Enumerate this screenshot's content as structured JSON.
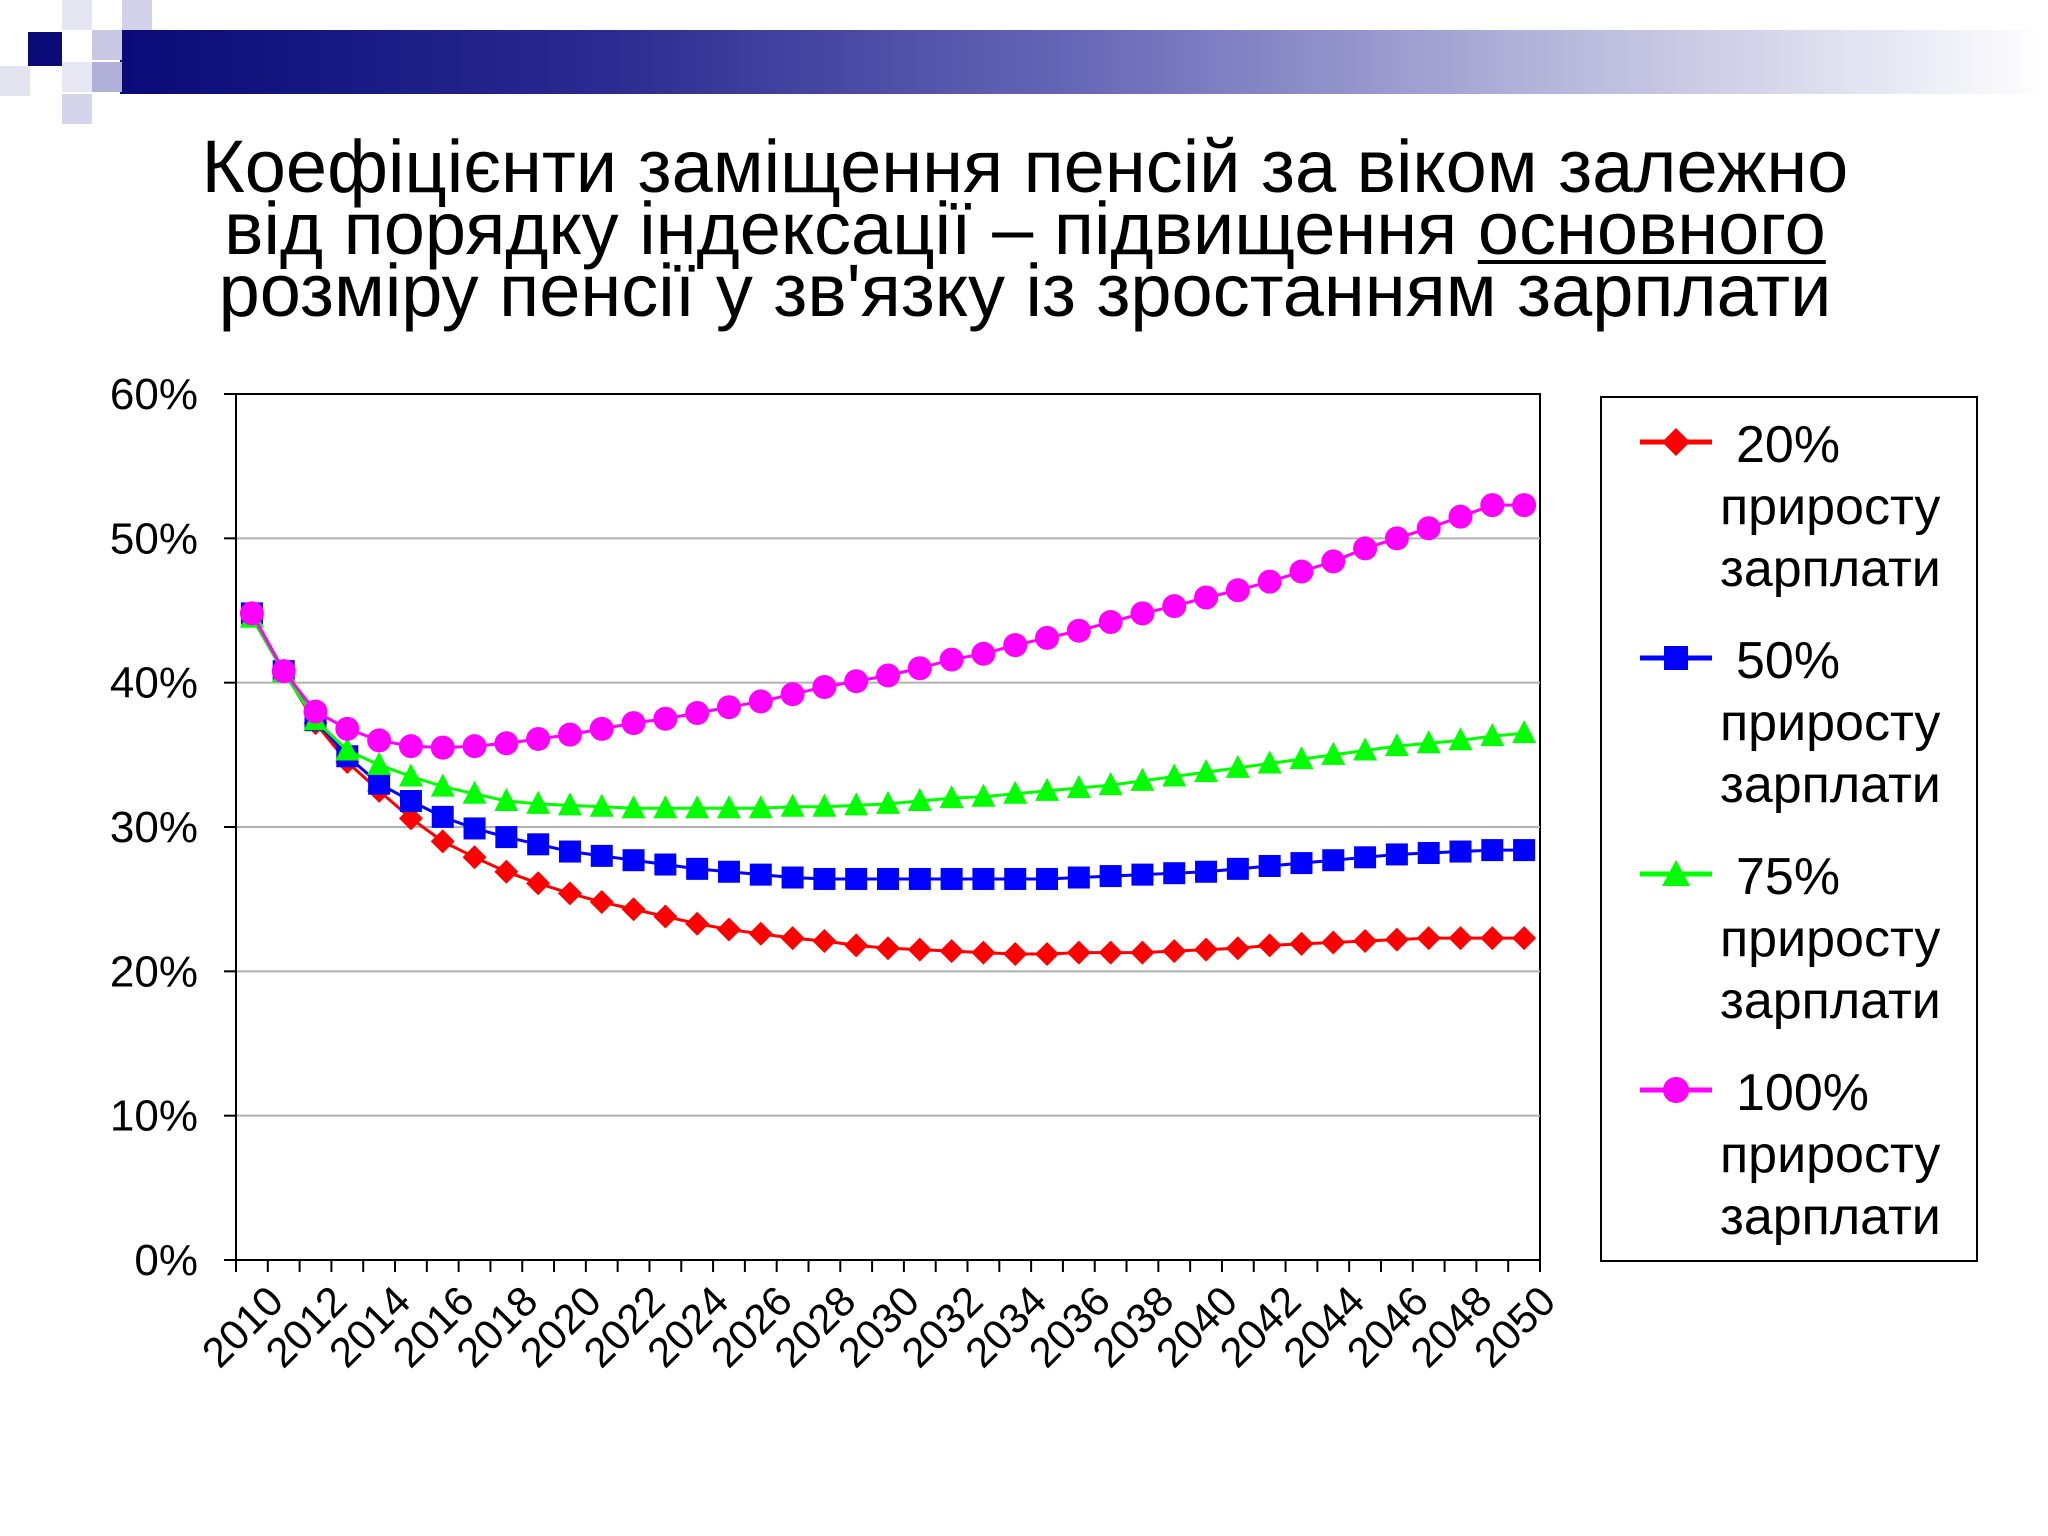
{
  "slide": {
    "title_line1": "Коефіцієнти заміщення пенсій за віком залежно",
    "title_line2_pre": "від порядку індексації – підвищення ",
    "title_line2_underlined": "основного",
    "title_line3": "розміру пенсії у зв'язку із зростанням зарплати",
    "colors": {
      "bar_dark": "#0a0a78",
      "bar_light": "#b8b8dc"
    }
  },
  "chart_data": {
    "type": "line",
    "title": "",
    "xlabel": "",
    "ylabel": "",
    "ylim": [
      0,
      60
    ],
    "yticks": [
      "0%",
      "10%",
      "20%",
      "30%",
      "40%",
      "50%",
      "60%"
    ],
    "x_tick_labels": [
      "2010",
      "2012",
      "2014",
      "2016",
      "2018",
      "2020",
      "2022",
      "2024",
      "2026",
      "2028",
      "2030",
      "2032",
      "2034",
      "2036",
      "2038",
      "2040",
      "2042",
      "2044",
      "2046",
      "2048",
      "2050"
    ],
    "x": [
      2010,
      2011,
      2012,
      2013,
      2014,
      2015,
      2016,
      2017,
      2018,
      2019,
      2020,
      2021,
      2022,
      2023,
      2024,
      2025,
      2026,
      2027,
      2028,
      2029,
      2030,
      2031,
      2032,
      2033,
      2034,
      2035,
      2036,
      2037,
      2038,
      2039,
      2040,
      2041,
      2042,
      2043,
      2044,
      2045,
      2046,
      2047,
      2048,
      2049,
      2050
    ],
    "grid": true,
    "legend_position": "right",
    "series": [
      {
        "name_pct": "20%",
        "name_line2": "приросту",
        "name_line3": "зарплати",
        "color": "#ff0000",
        "marker": "diamond",
        "values": [
          44.8,
          40.8,
          37.2,
          34.5,
          32.5,
          30.6,
          29.0,
          27.9,
          26.9,
          26.1,
          25.4,
          24.8,
          24.3,
          23.8,
          23.3,
          22.9,
          22.6,
          22.3,
          22.1,
          21.8,
          21.6,
          21.5,
          21.4,
          21.3,
          21.2,
          21.2,
          21.3,
          21.3,
          21.3,
          21.4,
          21.5,
          21.6,
          21.8,
          21.9,
          22.0,
          22.1,
          22.2,
          22.3,
          22.3,
          22.3,
          22.3
        ]
      },
      {
        "name_pct": "50%",
        "name_line2": "приросту",
        "name_line3": "зарплати",
        "color": "#0000ff",
        "marker": "square",
        "values": [
          44.8,
          40.8,
          37.4,
          34.9,
          33.0,
          31.8,
          30.7,
          29.9,
          29.3,
          28.8,
          28.3,
          28.0,
          27.7,
          27.4,
          27.1,
          26.9,
          26.7,
          26.5,
          26.4,
          26.4,
          26.4,
          26.4,
          26.4,
          26.4,
          26.4,
          26.4,
          26.5,
          26.6,
          26.7,
          26.8,
          26.9,
          27.1,
          27.3,
          27.5,
          27.7,
          27.9,
          28.1,
          28.2,
          28.3,
          28.4,
          28.4
        ]
      },
      {
        "name_pct": "75%",
        "name_line2": "приросту",
        "name_line3": "зарплати",
        "color": "#00ff00",
        "marker": "triangle",
        "values": [
          44.5,
          40.7,
          37.4,
          35.3,
          34.3,
          33.5,
          32.8,
          32.3,
          31.8,
          31.6,
          31.5,
          31.4,
          31.3,
          31.3,
          31.3,
          31.3,
          31.3,
          31.4,
          31.4,
          31.5,
          31.6,
          31.8,
          32.0,
          32.1,
          32.3,
          32.5,
          32.7,
          32.9,
          33.2,
          33.5,
          33.8,
          34.1,
          34.4,
          34.7,
          35.0,
          35.3,
          35.6,
          35.8,
          36.0,
          36.3,
          36.5
        ]
      },
      {
        "name_pct": "100%",
        "name_line2": "приросту",
        "name_line3": "зарплати",
        "color": "#ff00ff",
        "marker": "circle",
        "values": [
          44.8,
          40.8,
          38.0,
          36.8,
          36.0,
          35.6,
          35.5,
          35.6,
          35.8,
          36.1,
          36.4,
          36.8,
          37.2,
          37.5,
          37.9,
          38.3,
          38.7,
          39.2,
          39.7,
          40.1,
          40.5,
          41.0,
          41.6,
          42.0,
          42.6,
          43.1,
          43.6,
          44.2,
          44.8,
          45.3,
          45.9,
          46.4,
          47.0,
          47.7,
          48.4,
          49.3,
          50.0,
          50.7,
          51.5,
          52.3,
          52.3
        ]
      }
    ]
  }
}
